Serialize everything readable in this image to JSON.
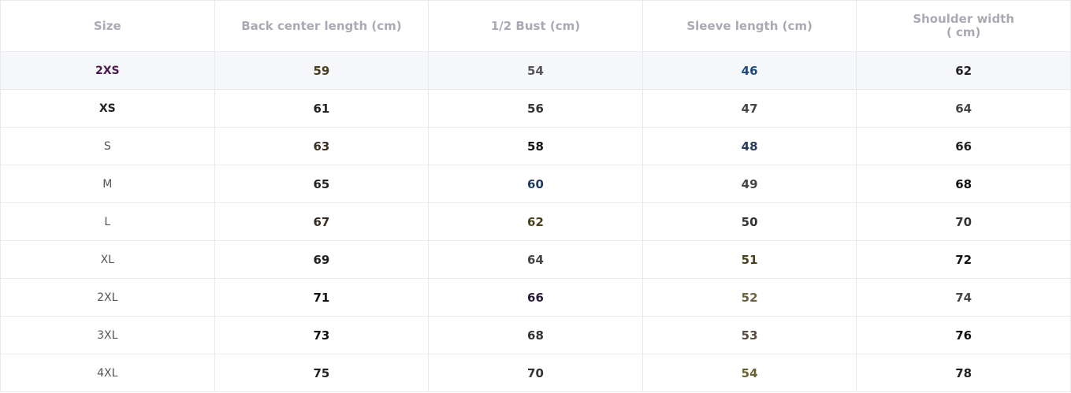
{
  "table": {
    "headers": [
      "Size",
      "Back center length (cm)",
      "1/2 Bust (cm)",
      "Sleeve length (cm)",
      "Shoulder width ( cm)"
    ],
    "rows": [
      {
        "cells": [
          "2XS",
          "59",
          "54",
          "46",
          "62"
        ],
        "colors": [
          "#4a1a4a",
          "#4a4020",
          "#555555",
          "#1e4a7a",
          "#222222"
        ],
        "highlight": true,
        "size_bold": true
      },
      {
        "cells": [
          "XS",
          "61",
          "56",
          "47",
          "64"
        ],
        "colors": [
          "#222222",
          "#222222",
          "#333333",
          "#444444",
          "#444444"
        ],
        "highlight": false,
        "size_bold": true
      },
      {
        "cells": [
          "S",
          "63",
          "58",
          "48",
          "66"
        ],
        "colors": [
          "#555555",
          "#3a3020",
          "#111111",
          "#2a3a5a",
          "#222222"
        ],
        "highlight": false,
        "size_bold": false
      },
      {
        "cells": [
          "M",
          "65",
          "60",
          "49",
          "68"
        ],
        "colors": [
          "#555555",
          "#222222",
          "#1e3a5a",
          "#444444",
          "#111111"
        ],
        "highlight": false,
        "size_bold": false
      },
      {
        "cells": [
          "L",
          "67",
          "62",
          "50",
          "70"
        ],
        "colors": [
          "#555555",
          "#3a2a20",
          "#4a4020",
          "#333333",
          "#333333"
        ],
        "highlight": false,
        "size_bold": false
      },
      {
        "cells": [
          "XL",
          "69",
          "64",
          "51",
          "72"
        ],
        "colors": [
          "#555555",
          "#222222",
          "#444444",
          "#4a4020",
          "#111111"
        ],
        "highlight": false,
        "size_bold": false
      },
      {
        "cells": [
          "2XL",
          "71",
          "66",
          "52",
          "74"
        ],
        "colors": [
          "#555555",
          "#111111",
          "#2a1a3a",
          "#6a6040",
          "#444444"
        ],
        "highlight": false,
        "size_bold": false
      },
      {
        "cells": [
          "3XL",
          "73",
          "68",
          "53",
          "76"
        ],
        "colors": [
          "#555555",
          "#111111",
          "#333333",
          "#5a4a40",
          "#111111"
        ],
        "highlight": false,
        "size_bold": false
      },
      {
        "cells": [
          "4XL",
          "75",
          "70",
          "54",
          "78"
        ],
        "colors": [
          "#555555",
          "#222222",
          "#333333",
          "#6a6030",
          "#222222"
        ],
        "highlight": false,
        "size_bold": false
      }
    ]
  }
}
